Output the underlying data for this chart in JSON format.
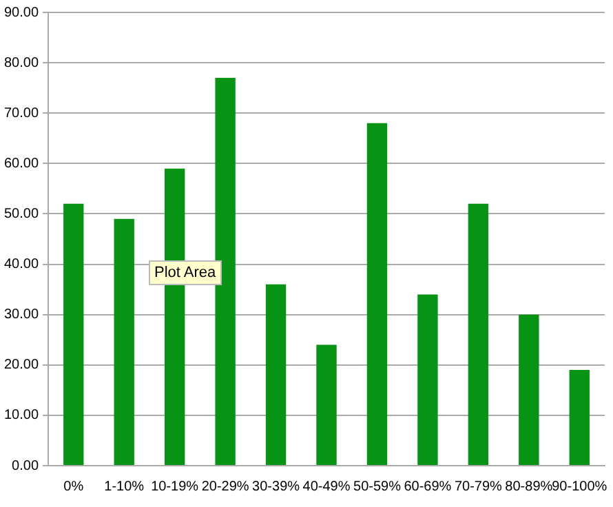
{
  "chart_data": {
    "type": "bar",
    "categories": [
      "0%",
      "1-10%",
      "10-19%",
      "20-29%",
      "30-39%",
      "40-49%",
      "50-59%",
      "60-69%",
      "70-79%",
      "80-89%",
      "90-100%"
    ],
    "values": [
      52,
      49,
      59,
      77,
      36,
      24,
      68,
      34,
      52,
      30,
      19
    ],
    "color": "#079415",
    "ylim": [
      0,
      90
    ],
    "yticks": [
      {
        "value": 0,
        "label": "0.00"
      },
      {
        "value": 10,
        "label": "10.00"
      },
      {
        "value": 20,
        "label": "20.00"
      },
      {
        "value": 30,
        "label": "30.00"
      },
      {
        "value": 40,
        "label": "40.00"
      },
      {
        "value": 50,
        "label": "50.00"
      },
      {
        "value": 60,
        "label": "60.00"
      },
      {
        "value": 70,
        "label": "70.00"
      },
      {
        "value": 80,
        "label": "80.00"
      },
      {
        "value": 90,
        "label": "90.00"
      }
    ],
    "grid": "y",
    "annotations": [
      "Plot Area"
    ]
  }
}
